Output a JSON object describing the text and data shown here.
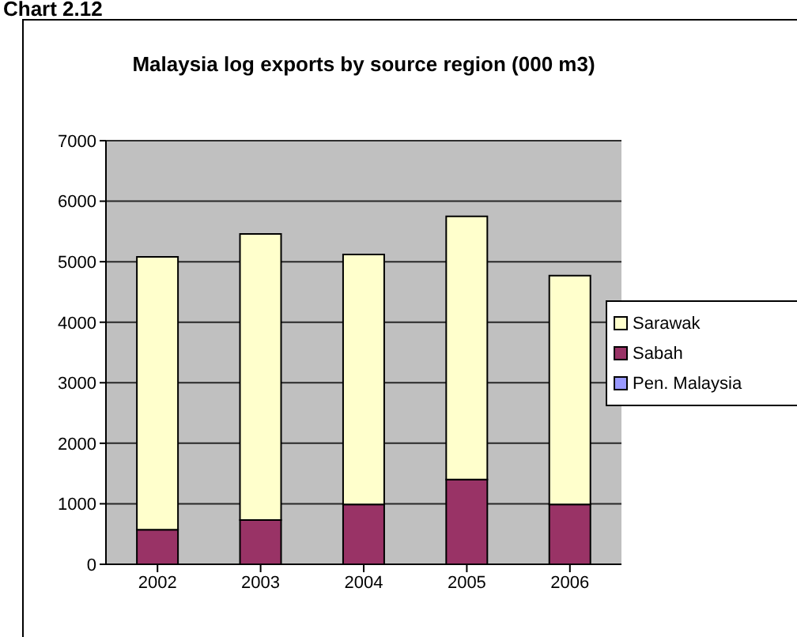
{
  "chart_data": {
    "type": "bar",
    "title": "Malaysia log exports by source region (000 m3)",
    "annotations": [
      "Chart 2.12"
    ],
    "categories": [
      "2002",
      "2003",
      "2004",
      "2005",
      "2006"
    ],
    "series": [
      {
        "name": "Pen. Malaysia",
        "color": "#9999ff",
        "values": [
          0,
          0,
          0,
          0,
          0
        ]
      },
      {
        "name": "Sabah",
        "color": "#993366",
        "values": [
          570,
          730,
          990,
          1400,
          990
        ]
      },
      {
        "name": "Sarawak",
        "color": "#ffffcc",
        "values": [
          4510,
          4730,
          4130,
          4350,
          3780
        ]
      }
    ],
    "stacked": true,
    "ylim": [
      0,
      7000
    ],
    "yticks": [
      0,
      1000,
      2000,
      3000,
      4000,
      5000,
      6000,
      7000
    ],
    "grid": "y",
    "legend": "right"
  }
}
